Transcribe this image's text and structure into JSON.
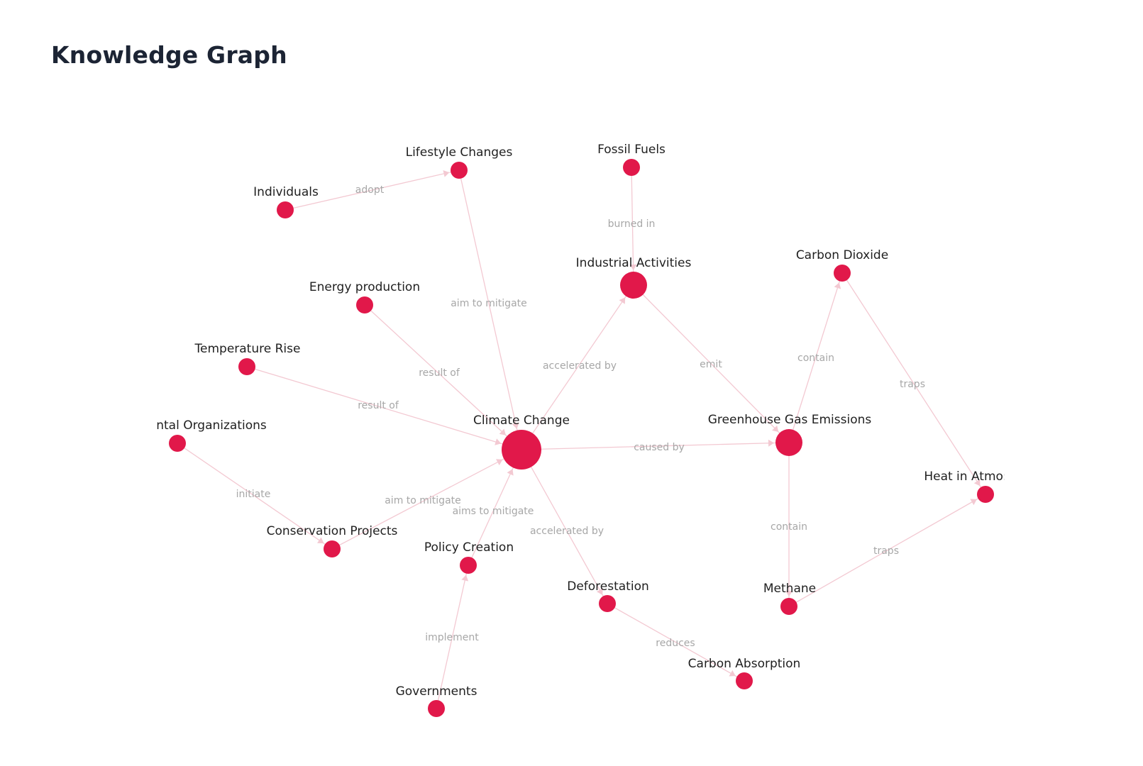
{
  "header": {
    "title": "Knowledge Graph"
  },
  "colors": {
    "node": "#e1184a",
    "edge": "#f3c9d2",
    "edge_label": "#a7a7a7",
    "title": "#1c2434"
  },
  "graph": {
    "nodes": [
      {
        "id": "climate-change",
        "label": "Climate Change",
        "size": "large"
      },
      {
        "id": "greenhouse-gas-emissions",
        "label": "Greenhouse Gas Emissions",
        "size": "medium"
      },
      {
        "id": "industrial-activities",
        "label": "Industrial Activities",
        "size": "medium"
      },
      {
        "id": "fossil-fuels",
        "label": "Fossil Fuels",
        "size": "small"
      },
      {
        "id": "lifestyle-changes",
        "label": "Lifestyle Changes",
        "size": "small"
      },
      {
        "id": "individuals",
        "label": "Individuals",
        "size": "small"
      },
      {
        "id": "energy-production",
        "label": "Energy production",
        "size": "small"
      },
      {
        "id": "temperature-rise",
        "label": "Temperature Rise",
        "size": "small"
      },
      {
        "id": "environmental-organizations",
        "label": "ntal Organizations",
        "size": "small"
      },
      {
        "id": "conservation-projects",
        "label": "Conservation Projects",
        "size": "small"
      },
      {
        "id": "policy-creation",
        "label": "Policy Creation",
        "size": "small"
      },
      {
        "id": "governments",
        "label": "Governments",
        "size": "small"
      },
      {
        "id": "deforestation",
        "label": "Deforestation",
        "size": "small"
      },
      {
        "id": "carbon-absorption",
        "label": "Carbon Absorption",
        "size": "small"
      },
      {
        "id": "carbon-dioxide",
        "label": "Carbon Dioxide",
        "size": "small"
      },
      {
        "id": "methane",
        "label": "Methane",
        "size": "small"
      },
      {
        "id": "heat-in-atmosphere",
        "label": "Heat in Atmo:",
        "size": "small"
      }
    ],
    "edges": [
      {
        "source": "individuals",
        "target": "lifestyle-changes",
        "label": "adopt"
      },
      {
        "source": "fossil-fuels",
        "target": "industrial-activities",
        "label": "burned in"
      },
      {
        "source": "lifestyle-changes",
        "target": "climate-change",
        "label": "aim to mitigate"
      },
      {
        "source": "energy-production",
        "target": "climate-change",
        "label": "result of"
      },
      {
        "source": "temperature-rise",
        "target": "climate-change",
        "label": "result of"
      },
      {
        "source": "climate-change",
        "target": "industrial-activities",
        "label": "accelerated by"
      },
      {
        "source": "industrial-activities",
        "target": "greenhouse-gas-emissions",
        "label": "emit"
      },
      {
        "source": "greenhouse-gas-emissions",
        "target": "carbon-dioxide",
        "label": "contain"
      },
      {
        "source": "carbon-dioxide",
        "target": "heat-in-atmosphere",
        "label": "traps"
      },
      {
        "source": "climate-change",
        "target": "greenhouse-gas-emissions",
        "label": "caused by"
      },
      {
        "source": "greenhouse-gas-emissions",
        "target": "methane",
        "label": "contain"
      },
      {
        "source": "methane",
        "target": "heat-in-atmosphere",
        "label": "traps"
      },
      {
        "source": "environmental-organizations",
        "target": "conservation-projects",
        "label": "initiate"
      },
      {
        "source": "conservation-projects",
        "target": "climate-change",
        "label": "aim to mitigate"
      },
      {
        "source": "policy-creation",
        "target": "climate-change",
        "label": "aims to mitigate"
      },
      {
        "source": "climate-change",
        "target": "deforestation",
        "label": "accelerated by"
      },
      {
        "source": "governments",
        "target": "policy-creation",
        "label": "implement"
      },
      {
        "source": "deforestation",
        "target": "carbon-absorption",
        "label": "reduces"
      }
    ]
  }
}
